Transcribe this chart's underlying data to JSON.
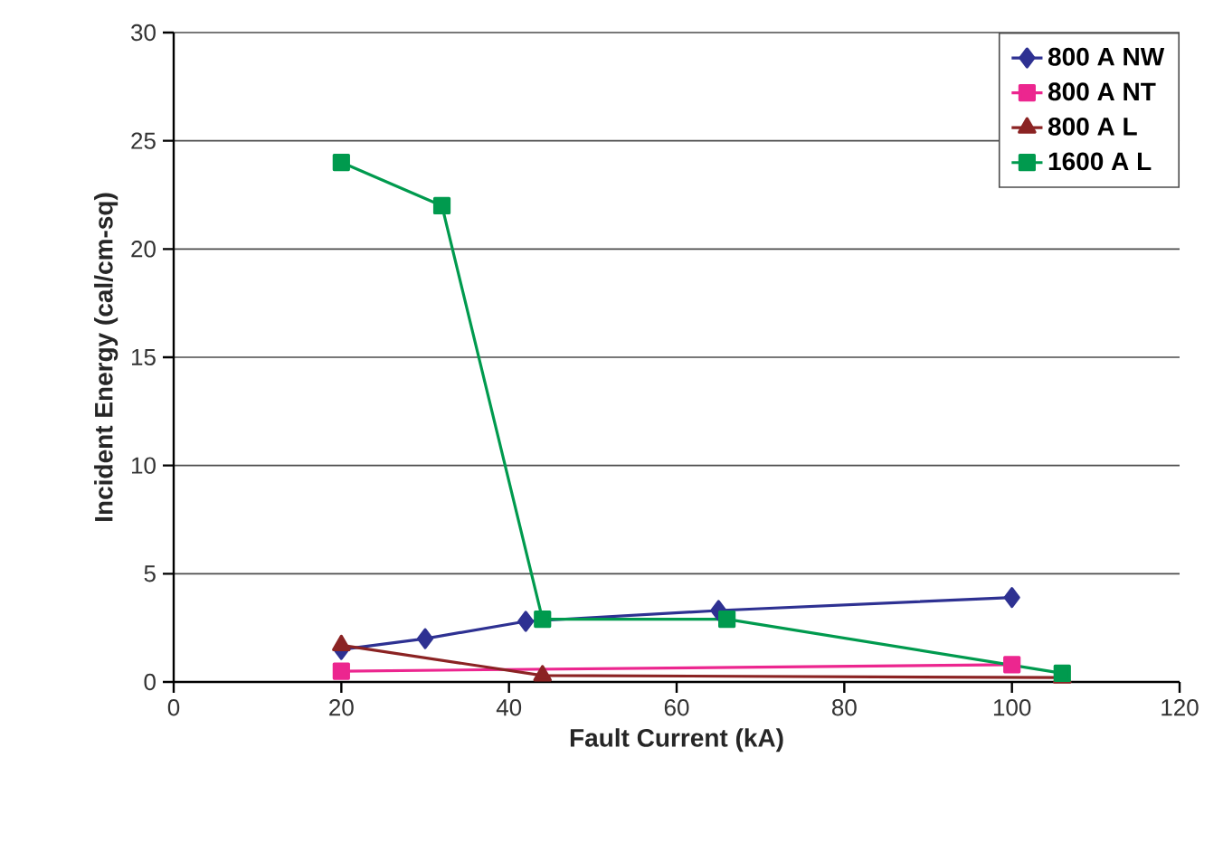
{
  "chart_data": {
    "type": "line",
    "xlabel": "Fault Current (kA)",
    "ylabel": "Incident Energy (cal/cm-sq)",
    "xlim": [
      0,
      120
    ],
    "ylim": [
      0,
      30
    ],
    "xticks": [
      0,
      20,
      40,
      60,
      80,
      100,
      120
    ],
    "yticks": [
      0,
      5,
      10,
      15,
      20,
      25,
      30
    ],
    "grid": "y",
    "legend": "top right",
    "series": [
      {
        "name": "800 A NW",
        "color": "#2e3192",
        "marker": "diamond",
        "x": [
          20,
          30,
          42,
          65,
          100
        ],
        "values": [
          1.5,
          2.0,
          2.8,
          3.3,
          3.9
        ]
      },
      {
        "name": "800 A NT",
        "color": "#ec268f",
        "marker": "square",
        "x": [
          20,
          100
        ],
        "values": [
          0.5,
          0.8
        ]
      },
      {
        "name": "800 A L",
        "color": "#8b2323",
        "marker": "triangle",
        "x": [
          20,
          44,
          106
        ],
        "values": [
          1.7,
          0.3,
          0.2
        ]
      },
      {
        "name": "1600 A L",
        "color": "#009a4e",
        "marker": "square",
        "x": [
          20,
          32,
          44,
          66,
          106
        ],
        "values": [
          24,
          22,
          2.9,
          2.9,
          0.4
        ]
      }
    ]
  }
}
